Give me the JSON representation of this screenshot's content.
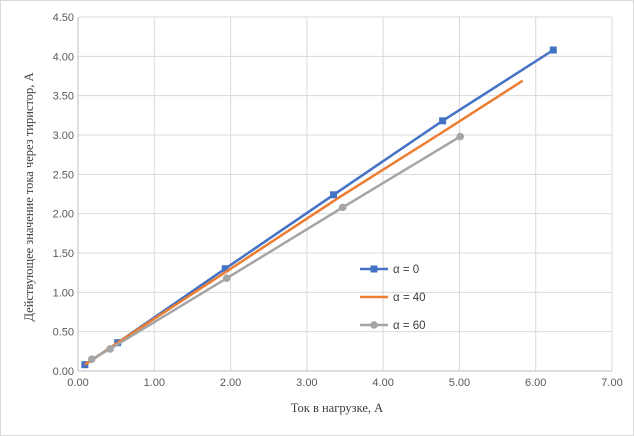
{
  "chart_data": {
    "type": "scatter",
    "title": "",
    "xlabel": "Ток в нагрузке, А",
    "ylabel": "Действующее значение тока через тиристор, А",
    "xlim": [
      0,
      7
    ],
    "ylim": [
      0,
      4.5
    ],
    "x_ticks": [
      "0.00",
      "1.00",
      "2.00",
      "3.00",
      "4.00",
      "5.00",
      "6.00",
      "7.00"
    ],
    "y_ticks": [
      "0.00",
      "0.50",
      "1.00",
      "1.50",
      "2.00",
      "2.50",
      "3.00",
      "3.50",
      "4.00",
      "4.50"
    ],
    "grid": true,
    "legend_position": "right",
    "series": [
      {
        "name": "α = 0",
        "color": "#4472c4",
        "marker": "square",
        "points": [
          [
            0.09,
            0.08
          ],
          [
            0.52,
            0.36
          ],
          [
            1.93,
            1.3
          ],
          [
            3.35,
            2.24
          ],
          [
            4.78,
            3.18
          ],
          [
            6.23,
            4.08
          ]
        ]
      },
      {
        "name": "α = 40",
        "color": "#ed7d31",
        "marker": "none",
        "points": [
          [
            0.09,
            0.08
          ],
          [
            0.52,
            0.36
          ],
          [
            1.97,
            1.28
          ],
          [
            3.43,
            2.21
          ],
          [
            4.72,
            3.0
          ],
          [
            5.83,
            3.69
          ]
        ]
      },
      {
        "name": "α = 60",
        "color": "#a5a5a5",
        "marker": "circle",
        "points": [
          [
            0.18,
            0.15
          ],
          [
            0.42,
            0.28
          ],
          [
            1.95,
            1.18
          ],
          [
            3.47,
            2.08
          ],
          [
            5.01,
            2.98
          ]
        ]
      }
    ]
  }
}
